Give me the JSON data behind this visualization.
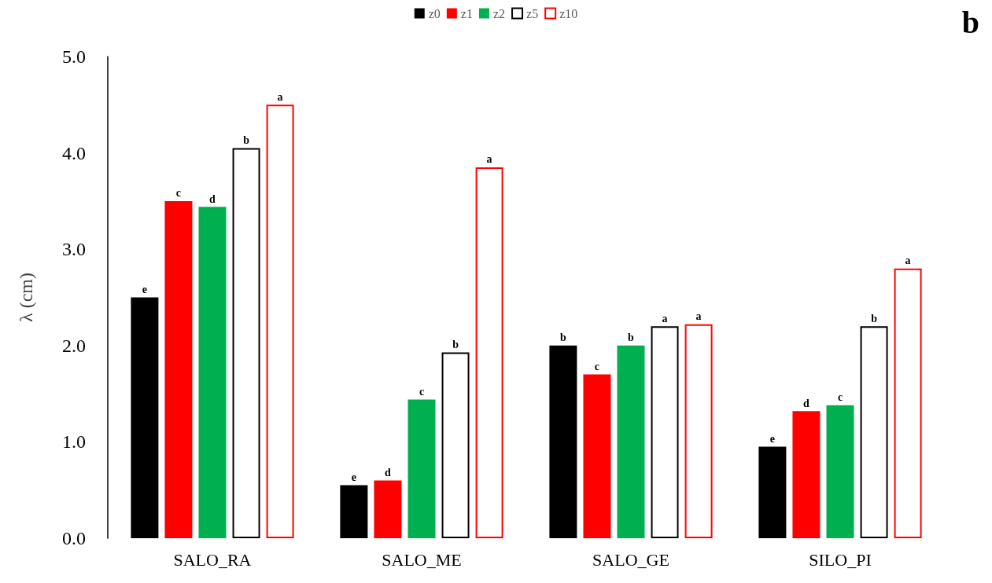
{
  "chart_data": {
    "type": "bar",
    "ylabel": "λ (cm)",
    "annotations": [
      "b"
    ],
    "categories": [
      "SALO_RA",
      "SALO_ME",
      "SALO_GE",
      "SILO_PI"
    ],
    "series": [
      {
        "name": "z0",
        "color": "#000000",
        "values": [
          2.5,
          0.55,
          2.0,
          0.95
        ],
        "value_labels": [
          "e",
          "e",
          "b",
          "e"
        ]
      },
      {
        "name": "z1",
        "color": "#ff0000",
        "values": [
          3.5,
          0.6,
          1.7,
          1.32
        ],
        "value_labels": [
          "c",
          "d",
          "c",
          "d"
        ]
      },
      {
        "name": "z2",
        "color": "#00b050",
        "values": [
          3.44,
          1.44,
          2.0,
          1.38
        ],
        "value_labels": [
          "d",
          "c",
          "b",
          "c"
        ]
      },
      {
        "name": "z5",
        "color": "#000000",
        "values": [
          4.05,
          1.93,
          2.2,
          2.2
        ],
        "value_labels": [
          "b",
          "b",
          "a",
          "b"
        ]
      },
      {
        "name": "z10",
        "color": "#ff0000",
        "values": [
          4.5,
          3.85,
          2.22,
          2.8
        ],
        "value_labels": [
          "a",
          "a",
          "a",
          "a"
        ]
      }
    ],
    "ylim": [
      0,
      5
    ],
    "yticks": [
      {
        "value": 0,
        "label": "0.0"
      },
      {
        "value": 1,
        "label": "1.0"
      },
      {
        "value": 2,
        "label": "2.0"
      },
      {
        "value": 3,
        "label": "3.0"
      },
      {
        "value": 4,
        "label": "4.0"
      },
      {
        "value": 5,
        "label": "5.0"
      }
    ],
    "grid": false,
    "legend": "top"
  }
}
